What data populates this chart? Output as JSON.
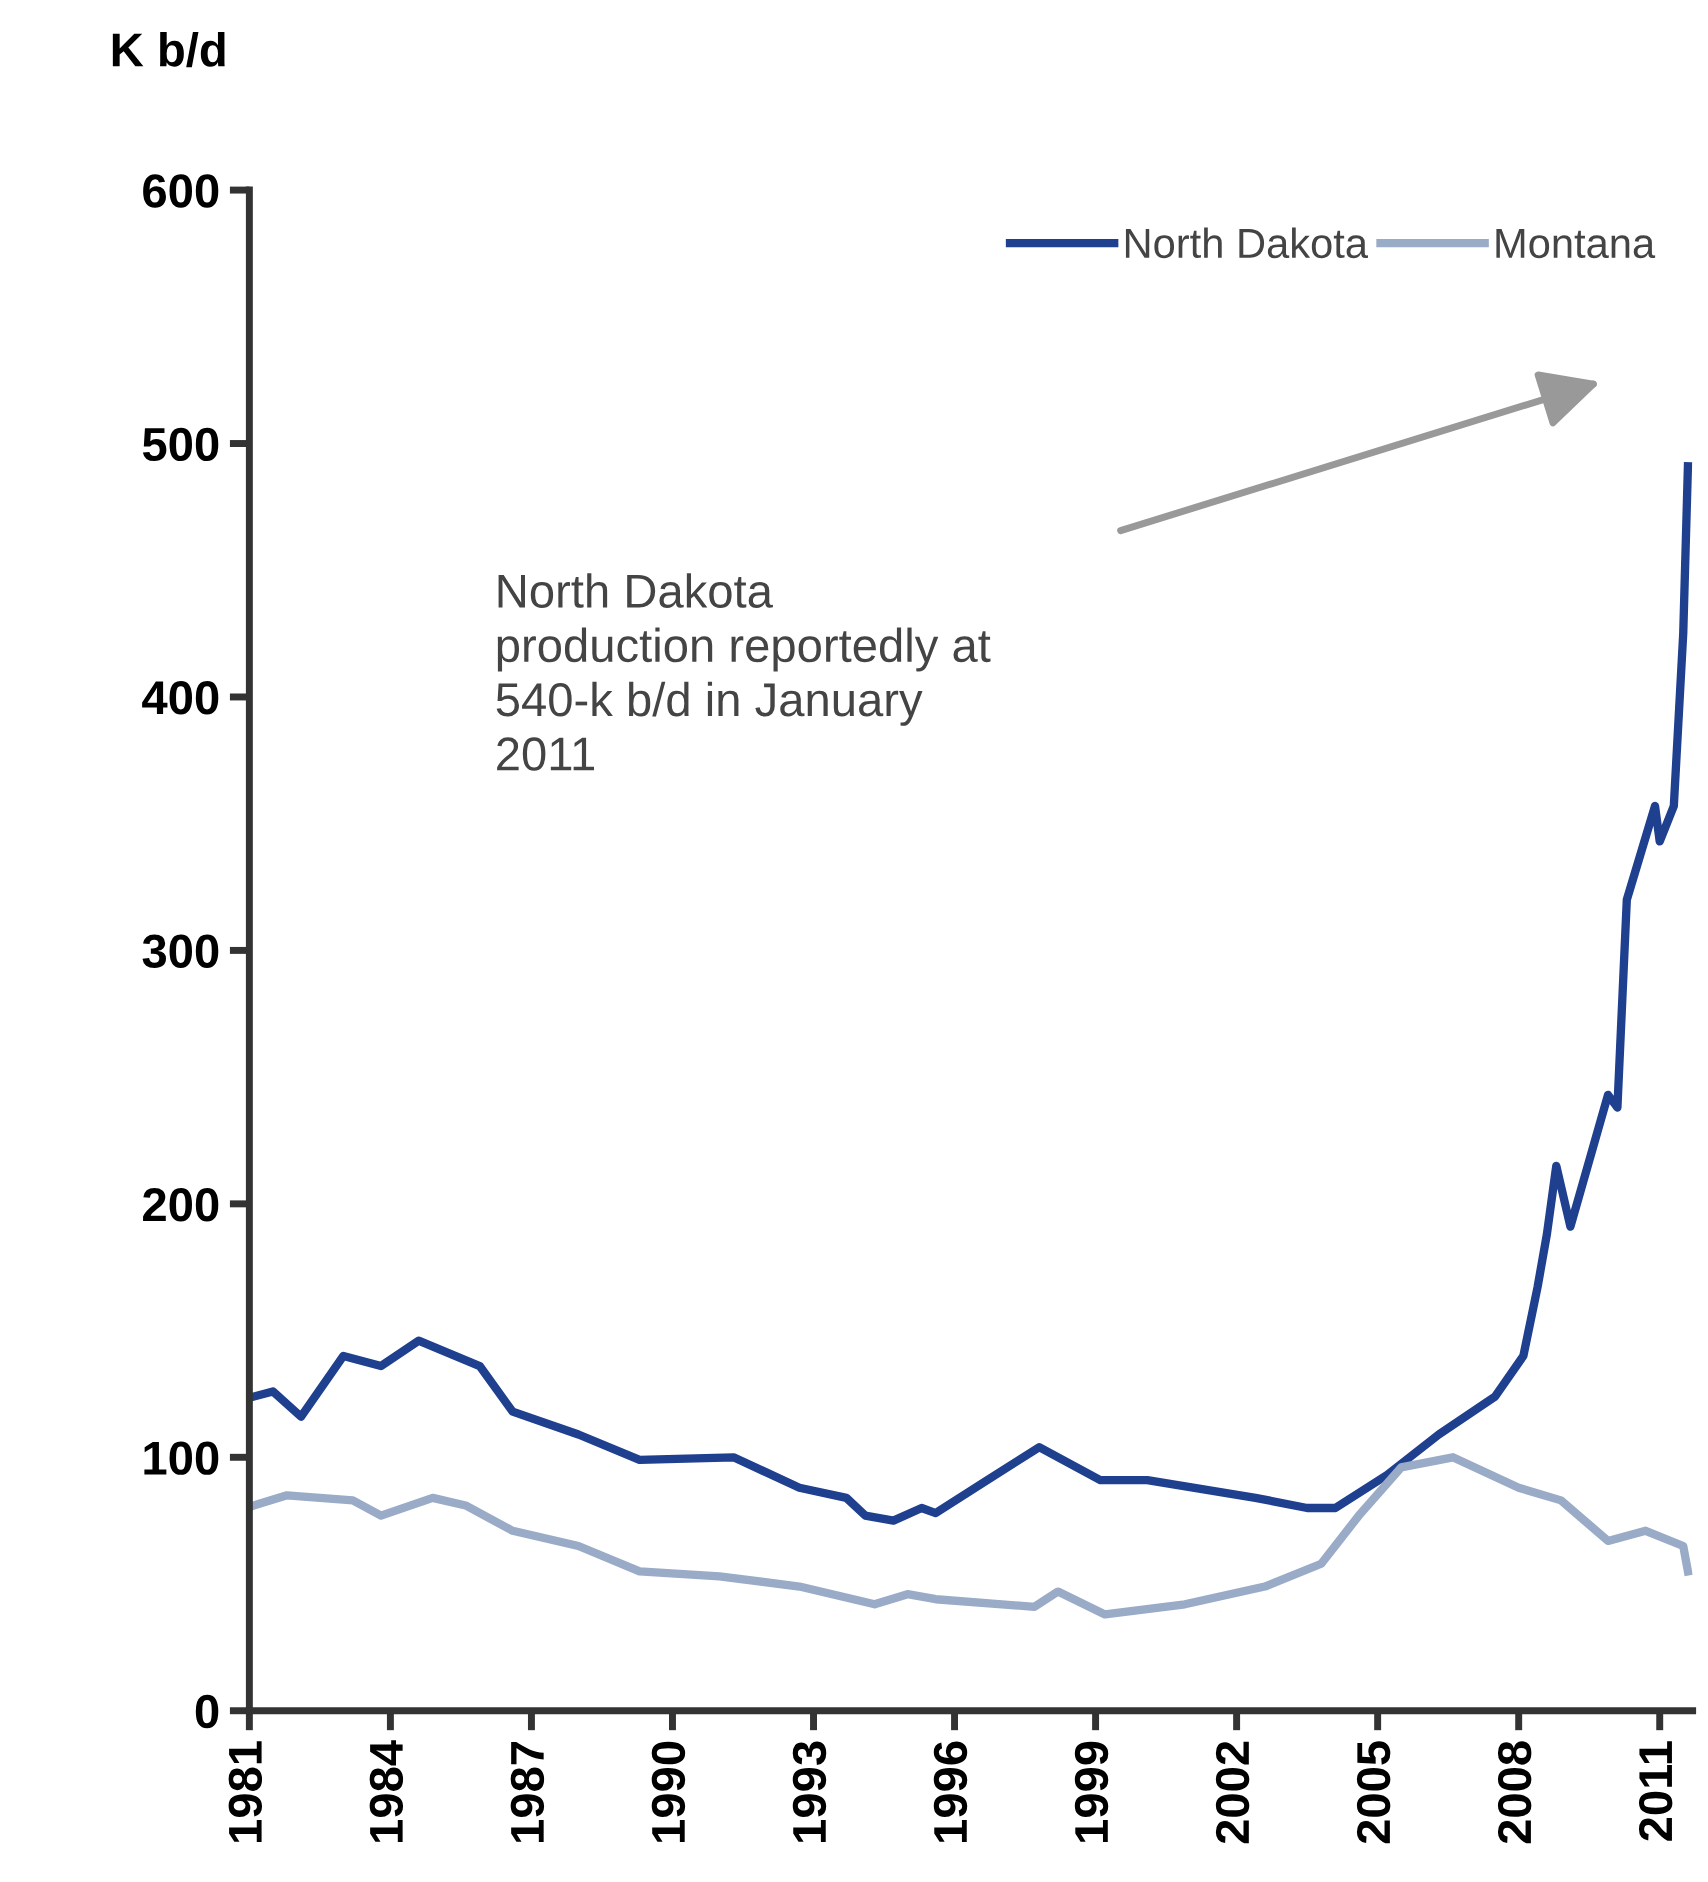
{
  "chart_data": {
    "type": "line",
    "ylabel": "K b/d",
    "xlim": [
      1981,
      2011.7
    ],
    "ylim": [
      0,
      600
    ],
    "xticks": [
      1981,
      1984,
      1987,
      1990,
      1993,
      1996,
      1999,
      2002,
      2005,
      2008,
      2011
    ],
    "yticks": [
      0,
      100,
      200,
      300,
      400,
      500,
      600
    ],
    "grid": false,
    "legend": "top right",
    "marker": "none",
    "line_style": "solid",
    "annotations": [
      "North Dakota\nproduction reportedly at\n540-k b/d in January\n2011"
    ],
    "series": [
      {
        "name": "North Dakota",
        "color": "#1f3f8f",
        "x": [
          1981.1,
          1981.5,
          1982.1,
          1983.0,
          1983.8,
          1984.6,
          1985.9,
          1986.6,
          1988.0,
          1989.3,
          1991.3,
          1992.7,
          1993.7,
          1994.1,
          1994.7,
          1995.3,
          1995.6,
          1996.7,
          1997.8,
          1999.1,
          2000.1,
          2002.4,
          2003.5,
          2004.1,
          2005.2,
          2006.3,
          2007.5,
          2008.1,
          2008.4,
          2008.6,
          2008.8,
          2009.1,
          2009.9,
          2010.1,
          2010.3,
          2010.9,
          2011.0,
          2011.3,
          2011.5,
          2011.6
        ],
        "values": [
          124,
          126,
          116,
          140,
          136,
          146,
          136,
          118,
          109,
          99,
          100,
          88,
          84,
          77,
          75,
          80,
          78,
          91,
          104,
          91,
          91,
          84,
          80,
          80,
          93,
          109,
          124,
          140,
          167,
          188,
          215,
          191,
          243,
          238,
          320,
          357,
          343,
          357,
          425,
          491
        ]
      },
      {
        "name": "Montana",
        "color": "#9aabc8",
        "x": [
          1981.1,
          1981.8,
          1983.2,
          1983.8,
          1984.9,
          1985.6,
          1986.6,
          1988.0,
          1989.3,
          1991.0,
          1992.7,
          1994.3,
          1995.0,
          1995.6,
          1997.7,
          1998.2,
          1999.2,
          2000.9,
          2002.6,
          2003.8,
          2004.6,
          2005.5,
          2006.6,
          2008.0,
          2008.9,
          2009.9,
          2010.7,
          2011.5,
          2011.6
        ],
        "values": [
          81,
          85,
          83,
          77,
          84,
          81,
          71,
          65,
          55,
          53,
          49,
          42,
          46,
          44,
          41,
          47,
          38,
          42,
          49,
          58,
          77,
          96,
          100,
          88,
          83,
          67,
          71,
          65,
          55
        ]
      }
    ]
  }
}
